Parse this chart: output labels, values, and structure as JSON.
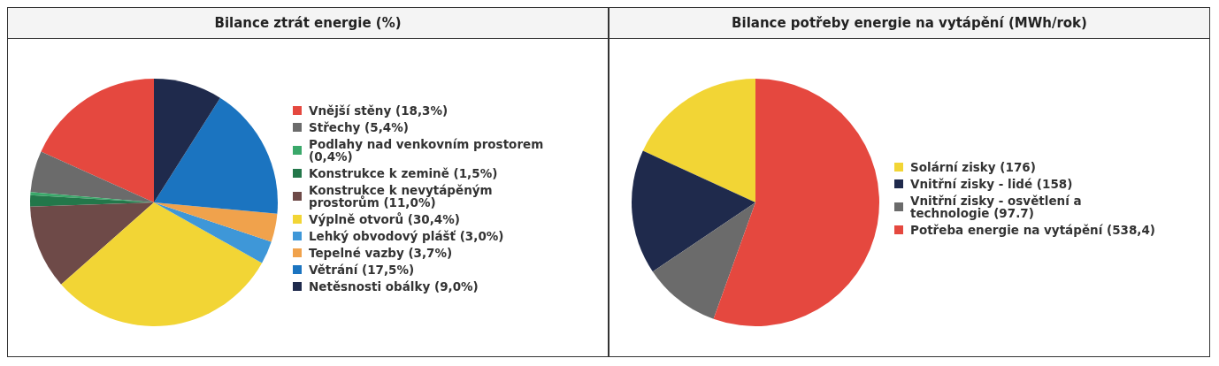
{
  "chart_data": [
    {
      "type": "pie",
      "title": "Bilance ztrát energie (%)",
      "legend": "right",
      "categories": [
        "Vnější stěny",
        "Střechy",
        "Podlahy nad venkovním prostorem",
        "Konstrukce k zemině",
        "Konstrukce k nevytápěným prostorům",
        "Výplně otvorů",
        "Lehký obvodový plášť",
        "Tepelné vazby",
        "Větrání",
        "Netěsnosti obálky"
      ],
      "values": [
        18.3,
        5.4,
        0.4,
        1.5,
        11.0,
        30.4,
        3.0,
        3.7,
        17.5,
        9.0
      ],
      "value_labels": [
        "(18,3%)",
        "(5,4%)",
        "(0,4%)",
        "(1,5%)",
        "(11,0%)",
        "(30,4%)",
        "(3,0%)",
        "(3,7%)",
        "(17,5%)",
        "(9,0%)"
      ],
      "colors": [
        "#e5483f",
        "#6b6b6b",
        "#3aa86a",
        "#23774a",
        "#6e4a48",
        "#f2d535",
        "#3e97d8",
        "#f0a24c",
        "#1b74c0",
        "#1f2a4c"
      ]
    },
    {
      "type": "pie",
      "title": "Bilance potřeby energie na vytápění (MWh/rok)",
      "legend": "right",
      "categories": [
        "Solární zisky",
        "Vnitřní zisky - lidé",
        "Vnitřní zisky - osvětlení a technologie",
        "Potřeba energie na vytápění"
      ],
      "values": [
        176,
        158,
        97.7,
        538.4
      ],
      "value_labels": [
        "(176)",
        "(158)",
        "(97.7)",
        "(538,4)"
      ],
      "colors": [
        "#f2d535",
        "#1f2a4c",
        "#6b6b6b",
        "#e5483f"
      ]
    }
  ]
}
